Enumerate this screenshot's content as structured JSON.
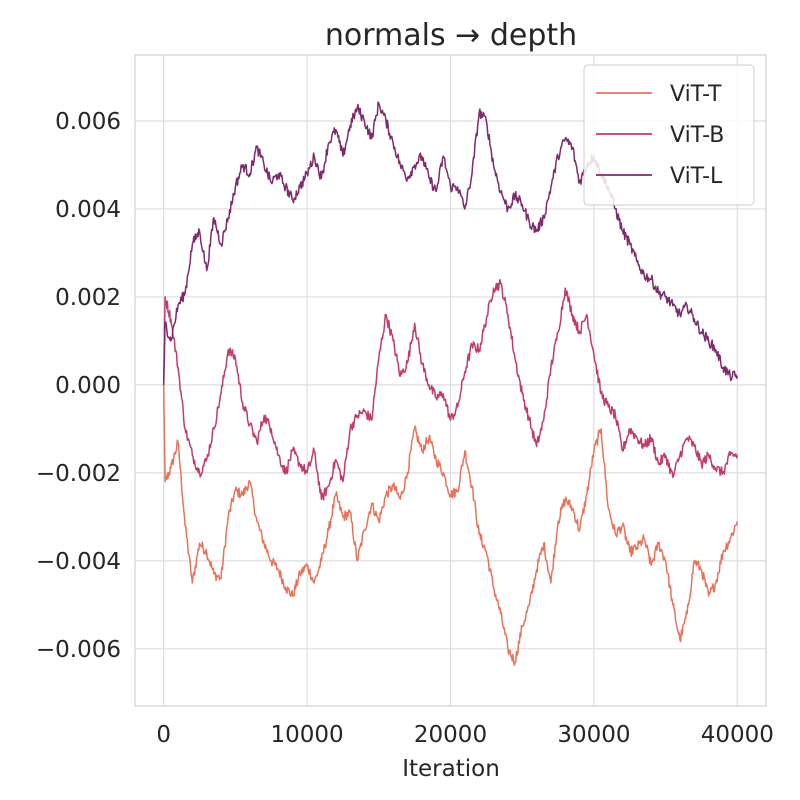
{
  "chart_data": {
    "type": "line",
    "title": "normals → depth",
    "xlabel": "Iteration",
    "ylabel": "",
    "xlim": [
      -2000,
      42000
    ],
    "ylim": [
      -0.0073,
      0.0075
    ],
    "grid": true,
    "legend_position": "top-right",
    "x_ticks": [
      0,
      10000,
      20000,
      30000,
      40000
    ],
    "x_tick_labels": [
      "0",
      "10000",
      "20000",
      "30000",
      "40000"
    ],
    "y_ticks": [
      -0.006,
      -0.004,
      -0.002,
      0.0,
      0.002,
      0.004,
      0.006
    ],
    "y_tick_labels": [
      "−0.006",
      "−0.004",
      "−0.002",
      "0.000",
      "0.002",
      "0.004",
      "0.006"
    ],
    "noise_amplitude": 0.00012,
    "series": [
      {
        "name": "ViT-T",
        "color": "#e8735a",
        "x": [
          0,
          100,
          500,
          1000,
          1500,
          2000,
          2500,
          3000,
          3500,
          4000,
          4500,
          5000,
          5500,
          6000,
          6500,
          7000,
          7500,
          8000,
          8500,
          9000,
          9500,
          10000,
          10500,
          11000,
          11500,
          12000,
          12500,
          13000,
          13500,
          14000,
          14500,
          15000,
          15500,
          16000,
          16500,
          17000,
          17500,
          18000,
          18500,
          19000,
          19500,
          20000,
          20500,
          21000,
          21500,
          22000,
          22500,
          23000,
          23500,
          24000,
          24500,
          25000,
          25500,
          26000,
          26500,
          27000,
          27500,
          28000,
          28500,
          29000,
          29500,
          30000,
          30500,
          31000,
          31500,
          32000,
          32500,
          33000,
          33500,
          34000,
          34500,
          35000,
          35500,
          36000,
          36500,
          37000,
          37500,
          38000,
          38500,
          39000,
          39500,
          40000
        ],
        "values": [
          0.0,
          -0.0022,
          -0.0019,
          -0.0013,
          -0.0032,
          -0.0045,
          -0.0036,
          -0.0038,
          -0.0043,
          -0.0044,
          -0.003,
          -0.0024,
          -0.0025,
          -0.0022,
          -0.0031,
          -0.0036,
          -0.004,
          -0.0042,
          -0.0046,
          -0.0048,
          -0.0043,
          -0.0041,
          -0.0045,
          -0.004,
          -0.0033,
          -0.0025,
          -0.003,
          -0.0029,
          -0.004,
          -0.0033,
          -0.0027,
          -0.0031,
          -0.0025,
          -0.0023,
          -0.0026,
          -0.002,
          -0.001,
          -0.0015,
          -0.0012,
          -0.0017,
          -0.002,
          -0.0025,
          -0.0024,
          -0.0015,
          -0.0023,
          -0.0034,
          -0.0038,
          -0.0046,
          -0.0052,
          -0.006,
          -0.0063,
          -0.0055,
          -0.005,
          -0.0042,
          -0.0036,
          -0.0045,
          -0.0031,
          -0.0026,
          -0.0028,
          -0.0033,
          -0.0025,
          -0.0015,
          -0.001,
          -0.0028,
          -0.0034,
          -0.0032,
          -0.0038,
          -0.0037,
          -0.0035,
          -0.0041,
          -0.0036,
          -0.004,
          -0.005,
          -0.0058,
          -0.0052,
          -0.004,
          -0.0042,
          -0.0048,
          -0.0045,
          -0.0038,
          -0.0035,
          -0.0031
        ]
      },
      {
        "name": "ViT-B",
        "color": "#c13c6a",
        "x": [
          0,
          100,
          500,
          1000,
          1500,
          2000,
          2500,
          3000,
          3500,
          4000,
          4500,
          5000,
          5500,
          6000,
          6500,
          7000,
          7500,
          8000,
          8500,
          9000,
          9500,
          10000,
          10500,
          11000,
          11500,
          12000,
          12500,
          13000,
          13500,
          14000,
          14500,
          15000,
          15500,
          16000,
          16500,
          17000,
          17500,
          18000,
          18500,
          19000,
          19500,
          20000,
          20500,
          21000,
          21500,
          22000,
          22500,
          23000,
          23500,
          24000,
          24500,
          25000,
          25500,
          26000,
          26500,
          27000,
          27500,
          28000,
          28500,
          29000,
          29500,
          30000,
          30500,
          31000,
          31500,
          32000,
          32500,
          33000,
          33500,
          34000,
          34500,
          35000,
          35500,
          36000,
          36500,
          37000,
          37500,
          38000,
          38500,
          39000,
          39500,
          40000
        ],
        "values": [
          0.0,
          0.002,
          0.0015,
          0.0004,
          -0.001,
          -0.0016,
          -0.002,
          -0.0017,
          -0.001,
          -0.0002,
          0.0008,
          0.0006,
          -0.0004,
          -0.0009,
          -0.0013,
          -0.0007,
          -0.001,
          -0.0016,
          -0.002,
          -0.0015,
          -0.0018,
          -0.002,
          -0.0015,
          -0.0026,
          -0.0023,
          -0.0017,
          -0.0022,
          -0.001,
          -0.0007,
          -0.0006,
          -0.0008,
          0.0006,
          0.0016,
          0.001,
          0.0002,
          0.0005,
          0.0014,
          0.0005,
          0.0,
          -0.0003,
          -0.0002,
          -0.0008,
          -0.0005,
          0.0003,
          0.0009,
          0.0008,
          0.0015,
          0.0022,
          0.0023,
          0.0016,
          0.0006,
          -0.0002,
          -0.0008,
          -0.0014,
          -0.0008,
          0.0004,
          0.0012,
          0.0022,
          0.0016,
          0.0012,
          0.0016,
          0.0007,
          -0.0002,
          -0.0005,
          -0.0007,
          -0.0015,
          -0.001,
          -0.0012,
          -0.0014,
          -0.0012,
          -0.0018,
          -0.0016,
          -0.0021,
          -0.0016,
          -0.0012,
          -0.0014,
          -0.0018,
          -0.0016,
          -0.0019,
          -0.002,
          -0.0016,
          -0.0016
        ]
      },
      {
        "name": "ViT-L",
        "color": "#7e2a6c",
        "x": [
          0,
          100,
          500,
          1000,
          1500,
          2000,
          2500,
          3000,
          3500,
          4000,
          4500,
          5000,
          5500,
          6000,
          6500,
          7000,
          7500,
          8000,
          8500,
          9000,
          9500,
          10000,
          10500,
          11000,
          11500,
          12000,
          12500,
          13000,
          13500,
          14000,
          14500,
          15000,
          15500,
          16000,
          16500,
          17000,
          17500,
          18000,
          18500,
          19000,
          19500,
          20000,
          20500,
          21000,
          21500,
          22000,
          22500,
          23000,
          23500,
          24000,
          24500,
          25000,
          25500,
          26000,
          26500,
          27000,
          27500,
          28000,
          28500,
          29000,
          29500,
          30000,
          30500,
          31000,
          31500,
          32000,
          32500,
          33000,
          33500,
          34000,
          34500,
          35000,
          35500,
          36000,
          36500,
          37000,
          37500,
          38000,
          38500,
          39000,
          39500,
          40000
        ],
        "values": [
          0.0,
          0.0014,
          0.001,
          0.0018,
          0.0021,
          0.0032,
          0.0035,
          0.0026,
          0.0038,
          0.0032,
          0.0038,
          0.0045,
          0.005,
          0.0048,
          0.0054,
          0.005,
          0.0046,
          0.0048,
          0.0045,
          0.0042,
          0.0045,
          0.0048,
          0.0052,
          0.0047,
          0.0055,
          0.0058,
          0.0052,
          0.0059,
          0.0063,
          0.006,
          0.0056,
          0.0064,
          0.006,
          0.0055,
          0.005,
          0.0047,
          0.005,
          0.0052,
          0.0047,
          0.0044,
          0.0052,
          0.0045,
          0.0045,
          0.004,
          0.0048,
          0.0062,
          0.006,
          0.005,
          0.0044,
          0.004,
          0.0043,
          0.0041,
          0.0037,
          0.0035,
          0.0038,
          0.0045,
          0.0052,
          0.0056,
          0.0054,
          0.0046,
          0.005,
          0.0052,
          0.0048,
          0.0045,
          0.004,
          0.0035,
          0.0032,
          0.0028,
          0.0025,
          0.0024,
          0.0021,
          0.002,
          0.0018,
          0.0016,
          0.0018,
          0.0015,
          0.0012,
          0.001,
          0.0008,
          0.0004,
          0.0002,
          0.0002
        ]
      }
    ]
  }
}
